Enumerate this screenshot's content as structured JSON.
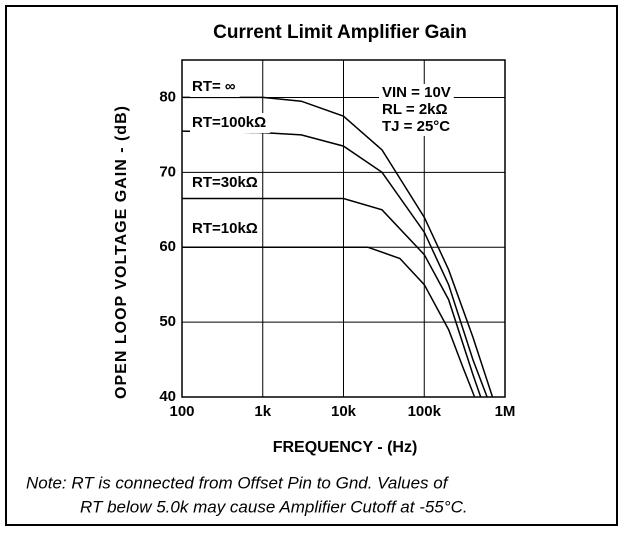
{
  "chart_data": {
    "type": "line",
    "title": "Current Limit Amplifier Gain",
    "x_label": "FREQUENCY - (Hz)",
    "y_label": "OPEN LOOP VOLTAGE GAIN - (dB)",
    "x_log": true,
    "grid": true,
    "xlim": [
      100,
      1000000
    ],
    "ylim": [
      40,
      85
    ],
    "xticks": [
      100,
      {
        "value": 1000,
        "label": "1k"
      },
      {
        "value": 10000,
        "label": "10k"
      },
      {
        "value": 100000,
        "label": "100k"
      },
      {
        "value": 1000000,
        "label": "1M"
      }
    ],
    "yticks": [
      40,
      50,
      60,
      70,
      80
    ],
    "color": "#000000",
    "series": [
      {
        "name": "RT= ∞",
        "x": [
          100,
          1000,
          3000,
          10000,
          30000,
          100000,
          200000,
          400000,
          700000
        ],
        "values": [
          80,
          80,
          79.5,
          77.5,
          73,
          64,
          57,
          48,
          40
        ]
      },
      {
        "name": "RT=100kΩ",
        "x": [
          100,
          1000,
          3000,
          10000,
          30000,
          100000,
          200000,
          400000,
          600000
        ],
        "values": [
          75.5,
          75.3,
          75,
          73.5,
          70,
          62,
          55,
          45,
          40
        ]
      },
      {
        "name": "RT=30kΩ",
        "x": [
          100,
          10000,
          30000,
          100000,
          200000,
          400000,
          500000
        ],
        "values": [
          66.5,
          66.5,
          65,
          59,
          53,
          43,
          40
        ]
      },
      {
        "name": "RT=10kΩ",
        "x": [
          100,
          20000,
          50000,
          100000,
          200000,
          300000,
          420000
        ],
        "values": [
          60,
          60,
          58.5,
          55,
          49,
          44,
          40
        ]
      }
    ],
    "annotations": [
      "VIN = 10V",
      "RL = 2kΩ",
      "TJ = 25°C"
    ],
    "note": [
      "Note: RT is connected from Offset Pin to Gnd. Values of",
      "RT below 5.0k may cause Amplifier Cutoff at -55°C."
    ]
  }
}
